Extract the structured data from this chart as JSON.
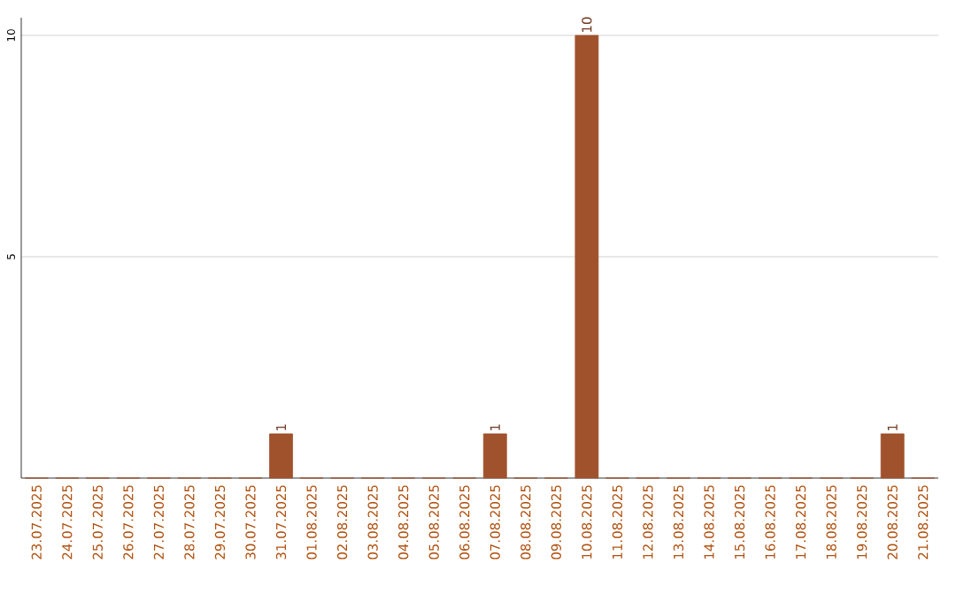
{
  "chart_data": {
    "type": "bar",
    "categories": [
      "23.07.2025",
      "24.07.2025",
      "25.07.2025",
      "26.07.2025",
      "27.07.2025",
      "28.07.2025",
      "29.07.2025",
      "30.07.2025",
      "31.07.2025",
      "01.08.2025",
      "02.08.2025",
      "03.08.2025",
      "04.08.2025",
      "05.08.2025",
      "06.08.2025",
      "07.08.2025",
      "08.08.2025",
      "09.08.2025",
      "10.08.2025",
      "11.08.2025",
      "12.08.2025",
      "13.08.2025",
      "14.08.2025",
      "15.08.2025",
      "16.08.2025",
      "17.08.2025",
      "18.08.2025",
      "19.08.2025",
      "20.08.2025",
      "21.08.2025"
    ],
    "values": [
      0,
      0,
      0,
      0,
      0,
      0,
      0,
      0,
      1,
      0,
      0,
      0,
      0,
      0,
      0,
      1,
      0,
      0,
      10,
      0,
      0,
      0,
      0,
      0,
      0,
      0,
      0,
      0,
      1,
      0
    ],
    "value_labels": [
      null,
      null,
      null,
      null,
      null,
      null,
      null,
      null,
      "1",
      null,
      null,
      null,
      null,
      null,
      null,
      "1",
      null,
      null,
      "10",
      null,
      null,
      null,
      null,
      null,
      null,
      null,
      null,
      null,
      "1",
      null
    ],
    "color": "#a0522d",
    "ylim": [
      0,
      10.4
    ],
    "yticks": [
      5,
      10
    ],
    "grid": "y"
  }
}
